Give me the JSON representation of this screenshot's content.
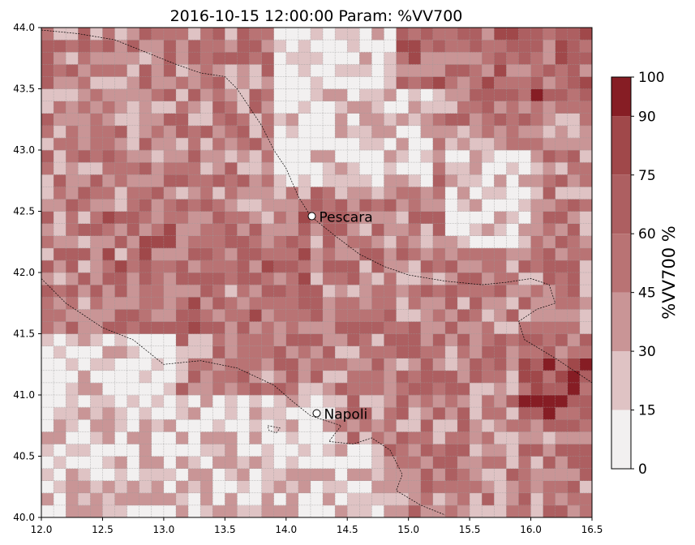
{
  "chart_data": {
    "type": "heatmap",
    "title": "2016-10-15 12:00:00 Param: %VV700",
    "xlim": [
      12.0,
      16.5
    ],
    "ylim": [
      40.0,
      44.0
    ],
    "x_ticks": [
      "12.0",
      "12.5",
      "13.0",
      "13.5",
      "14.0",
      "14.5",
      "15.0",
      "15.5",
      "16.0",
      "16.5"
    ],
    "y_ticks": [
      "40.0",
      "40.5",
      "41.0",
      "41.5",
      "42.0",
      "42.5",
      "43.0",
      "43.5",
      "44.0"
    ],
    "grid_resolution_deg": 0.1,
    "grid": true,
    "colorbar": {
      "label": "%VV700  %",
      "ticks": [
        "0",
        "15",
        "30",
        "45",
        "60",
        "75",
        "90",
        "100"
      ],
      "boundaries": [
        0,
        15,
        30,
        45,
        60,
        75,
        90,
        100
      ],
      "colors": [
        "#f2f0f0",
        "#dfc3c4",
        "#c99596",
        "#b97374",
        "#ad5f61",
        "#a0484a",
        "#861d24",
        "#6b0006"
      ]
    },
    "cities": [
      {
        "name": "Pescara",
        "lon": 14.21,
        "lat": 42.46
      },
      {
        "name": "Napoli",
        "lon": 14.25,
        "lat": 40.85
      }
    ]
  }
}
